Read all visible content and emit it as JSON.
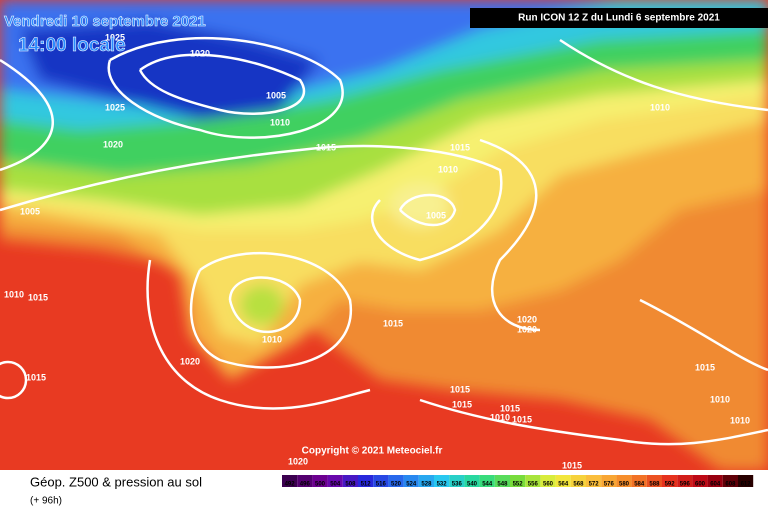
{
  "header": {
    "date": "Vendredi 10 septembre 2021",
    "time": "14:00 locale",
    "run": "Run ICON 12 Z du Lundi 6 septembre 2021"
  },
  "copyright": "Copyright © 2021 Meteociel.fr",
  "footer": {
    "title": "Géop. Z500 & pression au sol",
    "lead": "(+ 96h)"
  },
  "scale": {
    "labels": [
      492,
      496,
      500,
      504,
      508,
      512,
      516,
      520,
      524,
      528,
      532,
      536,
      540,
      544,
      548,
      552,
      556,
      560,
      564,
      568,
      572,
      576,
      580,
      584,
      588,
      592,
      596,
      600,
      604,
      608,
      612
    ]
  },
  "isobars": {
    "labels": [
      "1025",
      "1020",
      "1005",
      "1025",
      "1010",
      "1020",
      "1015",
      "1015",
      "1010",
      "1005",
      "1005",
      "1015",
      "1010",
      "1015",
      "1020",
      "1020",
      "1020",
      "1015",
      "1015",
      "1015",
      "1010",
      "1015",
      "1010",
      "1015",
      "1010",
      "1010",
      "1015",
      "1020",
      "1015",
      "1010"
    ]
  }
}
